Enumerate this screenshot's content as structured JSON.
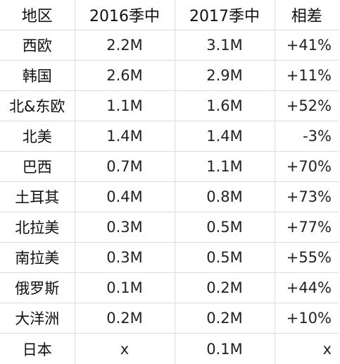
{
  "table": {
    "headers": {
      "region": "地区",
      "y2016": "2016季中",
      "y2017": "2017季中",
      "diff": "相差"
    },
    "rows": [
      {
        "region": "西欧",
        "y2016": "2.2M",
        "y2017": "3.1M",
        "diff": "+41%"
      },
      {
        "region": "韩国",
        "y2016": "2.6M",
        "y2017": "2.9M",
        "diff": "+11%"
      },
      {
        "region": "北&东欧",
        "y2016": "1.1M",
        "y2017": "1.6M",
        "diff": "+52%"
      },
      {
        "region": "北美",
        "y2016": "1.4M",
        "y2017": "1.4M",
        "diff": "-3%"
      },
      {
        "region": "巴西",
        "y2016": "0.7M",
        "y2017": "1.1M",
        "diff": "+70%"
      },
      {
        "region": "土耳其",
        "y2016": "0.4M",
        "y2017": "0.8M",
        "diff": "+73%"
      },
      {
        "region": "北拉美",
        "y2016": "0.3M",
        "y2017": "0.5M",
        "diff": "+77%"
      },
      {
        "region": "南拉美",
        "y2016": "0.3M",
        "y2017": "0.5M",
        "diff": "+55%"
      },
      {
        "region": "俄罗斯",
        "y2016": "0.1M",
        "y2017": "0.2M",
        "diff": "+44%"
      },
      {
        "region": "大洋洲",
        "y2016": "0.2M",
        "y2017": "0.2M",
        "diff": "+10%"
      },
      {
        "region": "日本",
        "y2016": "x",
        "y2017": "0.1M",
        "diff": "x"
      }
    ]
  }
}
